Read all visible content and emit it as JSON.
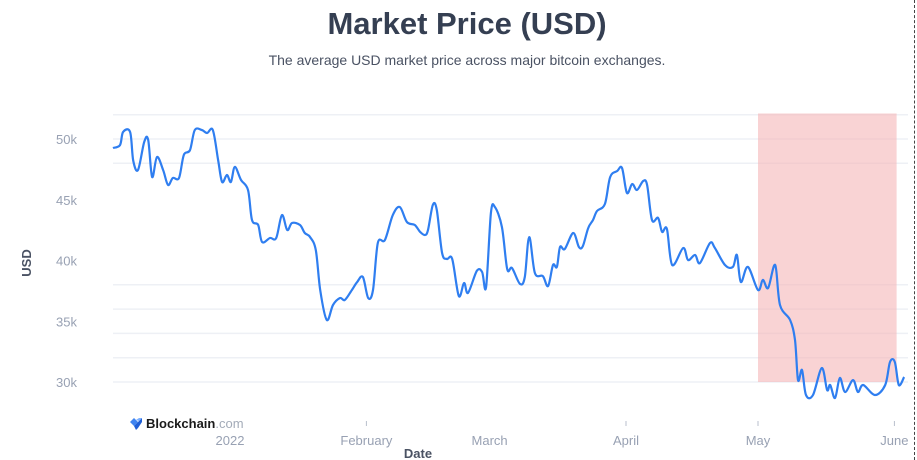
{
  "title": "Market Price (USD)",
  "subtitle": "The average USD market price across major bitcoin exchanges.",
  "watermark": {
    "brand": "Blockchain",
    "suffix": ".com"
  },
  "colors": {
    "line": "#2f7ef0",
    "highlight": "#f5b5b8",
    "grid": "#eef0f5",
    "tick_label": "#98a1b3",
    "axis_title": "#4a5263"
  },
  "chart_data": {
    "type": "line",
    "title": "Market Price (USD)",
    "xlabel": "Date",
    "ylabel": "USD",
    "x_unit": "days since 2022-01-01",
    "xlim": [
      -26.6,
      153.5
    ],
    "ylim": [
      28000,
      52300
    ],
    "grid": true,
    "y_ticks": [
      {
        "value": 30000,
        "label": "30k"
      },
      {
        "value": 35000,
        "label": "35k"
      },
      {
        "value": 40000,
        "label": "40k"
      },
      {
        "value": 45000,
        "label": "45k"
      },
      {
        "value": 50000,
        "label": "50k"
      }
    ],
    "gridlines": [
      30000,
      32000,
      34000,
      36000,
      38000,
      48000,
      50000,
      52000
    ],
    "x_ticks": [
      {
        "value": 0,
        "label": "2022",
        "tick": false
      },
      {
        "value": 31,
        "label": "February",
        "tick": true
      },
      {
        "value": 59,
        "label": "March",
        "tick": false
      },
      {
        "value": 90,
        "label": "April",
        "tick": true
      },
      {
        "value": 120,
        "label": "May",
        "tick": true
      },
      {
        "value": 151,
        "label": "June",
        "tick": true
      }
    ],
    "highlight_region": {
      "x": [
        120,
        151.5
      ],
      "y": [
        30000,
        52100
      ]
    },
    "series": [
      {
        "name": "Market Price (USD)",
        "points": [
          [
            -26.6,
            49260
          ],
          [
            -25,
            49500
          ],
          [
            -24.3,
            50580
          ],
          [
            -22.7,
            50580
          ],
          [
            -22,
            48230
          ],
          [
            -20.9,
            47450
          ],
          [
            -19.5,
            49750
          ],
          [
            -18.6,
            49920
          ],
          [
            -17.7,
            46870
          ],
          [
            -16.6,
            48520
          ],
          [
            -15.2,
            47450
          ],
          [
            -14.1,
            46220
          ],
          [
            -13,
            46790
          ],
          [
            -11.6,
            46790
          ],
          [
            -10.5,
            48680
          ],
          [
            -9.1,
            49090
          ],
          [
            -8,
            50740
          ],
          [
            -6.4,
            50740
          ],
          [
            -5.2,
            50490
          ],
          [
            -3.9,
            50740
          ],
          [
            -2.7,
            48270
          ],
          [
            -1.8,
            46460
          ],
          [
            -0.7,
            47040
          ],
          [
            0.2,
            46460
          ],
          [
            1.1,
            47700
          ],
          [
            2.5,
            46630
          ],
          [
            4.1,
            45800
          ],
          [
            5,
            43330
          ],
          [
            6.4,
            42920
          ],
          [
            7.3,
            41520
          ],
          [
            9.1,
            41850
          ],
          [
            10.5,
            41850
          ],
          [
            11.8,
            43740
          ],
          [
            13,
            42510
          ],
          [
            14.1,
            43090
          ],
          [
            15.9,
            42920
          ],
          [
            17,
            42260
          ],
          [
            18.2,
            41930
          ],
          [
            19.5,
            40860
          ],
          [
            20.5,
            37570
          ],
          [
            22,
            35100
          ],
          [
            23.4,
            36340
          ],
          [
            25,
            36910
          ],
          [
            26.1,
            36750
          ],
          [
            27.7,
            37570
          ],
          [
            28.9,
            38230
          ],
          [
            30.2,
            38640
          ],
          [
            31.4,
            36910
          ],
          [
            32.5,
            37570
          ],
          [
            33.6,
            41440
          ],
          [
            35.2,
            41690
          ],
          [
            37,
            43740
          ],
          [
            38.6,
            44400
          ],
          [
            40.2,
            43170
          ],
          [
            42,
            42920
          ],
          [
            43.2,
            42350
          ],
          [
            44.3,
            42100
          ],
          [
            45,
            42510
          ],
          [
            46.1,
            44570
          ],
          [
            47,
            44160
          ],
          [
            48.2,
            40620
          ],
          [
            49.3,
            40120
          ],
          [
            50.5,
            40120
          ],
          [
            52,
            37080
          ],
          [
            53.2,
            38150
          ],
          [
            54.1,
            37330
          ],
          [
            56.1,
            39140
          ],
          [
            57.3,
            39050
          ],
          [
            58.2,
            37820
          ],
          [
            59.3,
            43910
          ],
          [
            60.2,
            44400
          ],
          [
            61.8,
            42760
          ],
          [
            63,
            39300
          ],
          [
            64.1,
            39380
          ],
          [
            65.9,
            38070
          ],
          [
            67,
            38640
          ],
          [
            68,
            41930
          ],
          [
            69.3,
            38970
          ],
          [
            71.1,
            38720
          ],
          [
            72.3,
            37900
          ],
          [
            73.4,
            39630
          ],
          [
            74.3,
            39470
          ],
          [
            75,
            41110
          ],
          [
            76.1,
            40950
          ],
          [
            78,
            42260
          ],
          [
            79.3,
            41110
          ],
          [
            80.2,
            41190
          ],
          [
            81.4,
            42670
          ],
          [
            82.5,
            43330
          ],
          [
            83.4,
            44070
          ],
          [
            85.2,
            44650
          ],
          [
            86.4,
            46870
          ],
          [
            88,
            47370
          ],
          [
            89.1,
            47610
          ],
          [
            90.2,
            45560
          ],
          [
            91.4,
            46300
          ],
          [
            92.5,
            45800
          ],
          [
            93.9,
            46540
          ],
          [
            94.8,
            46210
          ],
          [
            95.9,
            43330
          ],
          [
            97.3,
            43500
          ],
          [
            98.2,
            42350
          ],
          [
            99.3,
            42600
          ],
          [
            100.5,
            39630
          ],
          [
            103,
            41030
          ],
          [
            104.1,
            40040
          ],
          [
            105.7,
            40450
          ],
          [
            106.8,
            39790
          ],
          [
            109.1,
            41440
          ],
          [
            110.2,
            41030
          ],
          [
            112.5,
            39630
          ],
          [
            114.3,
            39470
          ],
          [
            115.2,
            40450
          ],
          [
            116.1,
            38230
          ],
          [
            117.7,
            39470
          ],
          [
            120,
            37570
          ],
          [
            121.1,
            38400
          ],
          [
            122.3,
            37740
          ],
          [
            123.9,
            39630
          ],
          [
            125,
            36340
          ],
          [
            127.3,
            35100
          ],
          [
            128.4,
            33460
          ],
          [
            129.1,
            30160
          ],
          [
            130,
            30990
          ],
          [
            130.9,
            28930
          ],
          [
            132.5,
            28930
          ],
          [
            134.5,
            31150
          ],
          [
            135.7,
            29340
          ],
          [
            136.4,
            29750
          ],
          [
            137.5,
            28680
          ],
          [
            138.6,
            30330
          ],
          [
            139.8,
            29180
          ],
          [
            141.6,
            30160
          ],
          [
            142.7,
            29180
          ],
          [
            143.9,
            29750
          ],
          [
            146.6,
            28930
          ],
          [
            148.9,
            29750
          ],
          [
            150,
            31650
          ],
          [
            151.1,
            31650
          ],
          [
            152,
            29750
          ],
          [
            153.2,
            30410
          ]
        ]
      }
    ]
  }
}
